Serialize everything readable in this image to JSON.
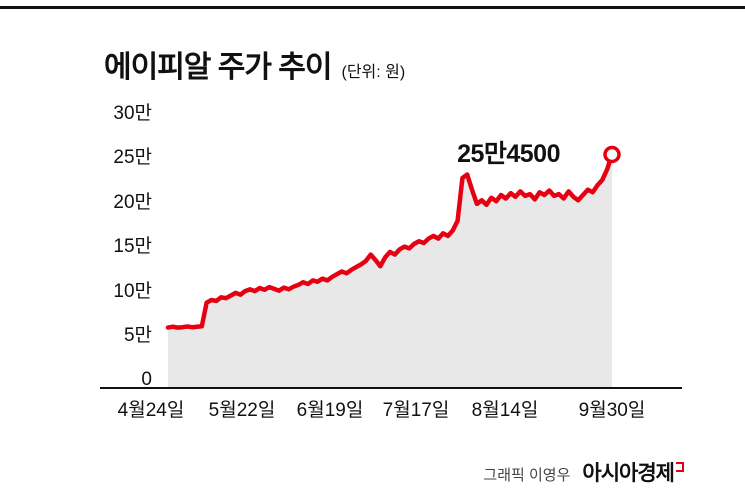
{
  "title": {
    "text": "에이피알 주가 추이",
    "unit": "(단위: 원)"
  },
  "annotation": {
    "last_price_label": "25만4500"
  },
  "credit": {
    "byline": "그래픽 이영우",
    "publisher": "아시아경제"
  },
  "colors": {
    "line": "#e60012",
    "area_fill": "#e8e8e8",
    "axis": "#111111",
    "marker_fill": "#ffffff"
  },
  "chart_data": {
    "type": "line",
    "title": "에이피알 주가 추이",
    "unit_label": "(단위: 원)",
    "unit": "원",
    "ylim": [
      0,
      30
    ],
    "y_ticks": [
      "30만",
      "25만",
      "20만",
      "15만",
      "10만",
      "5만",
      "0"
    ],
    "y_tick_values": [
      300000,
      250000,
      200000,
      150000,
      100000,
      50000,
      0
    ],
    "x_ticks": [
      "4월24일",
      "5월22일",
      "6월19일",
      "7월17일",
      "8월14일",
      "9월30일"
    ],
    "grid": "off",
    "legend": "none",
    "series_name": "에이피알 주가",
    "values_unit": "만원",
    "values": [
      6.0,
      6.1,
      6.0,
      6.05,
      6.12,
      6.05,
      6.1,
      6.15,
      8.8,
      9.1,
      9.0,
      9.4,
      9.3,
      9.6,
      9.9,
      9.7,
      10.1,
      10.3,
      10.1,
      10.45,
      10.25,
      10.55,
      10.35,
      10.15,
      10.5,
      10.3,
      10.6,
      10.8,
      11.1,
      10.9,
      11.3,
      11.15,
      11.5,
      11.3,
      11.7,
      12.0,
      12.3,
      12.1,
      12.5,
      12.8,
      13.1,
      13.5,
      14.2,
      13.6,
      12.9,
      13.9,
      14.5,
      14.2,
      14.8,
      15.1,
      14.9,
      15.4,
      15.7,
      15.5,
      16.0,
      16.3,
      16.0,
      16.6,
      16.3,
      16.9,
      18.0,
      22.8,
      23.2,
      21.5,
      19.9,
      20.3,
      19.8,
      20.6,
      20.2,
      20.9,
      20.5,
      21.1,
      20.7,
      21.3,
      20.8,
      21.0,
      20.4,
      21.2,
      20.9,
      21.4,
      20.8,
      21.0,
      20.5,
      21.3,
      20.7,
      20.3,
      20.9,
      21.5,
      21.2,
      22.0,
      22.6,
      23.8,
      25.45
    ],
    "last_point": {
      "label": "25만4500",
      "value": 254500
    }
  }
}
